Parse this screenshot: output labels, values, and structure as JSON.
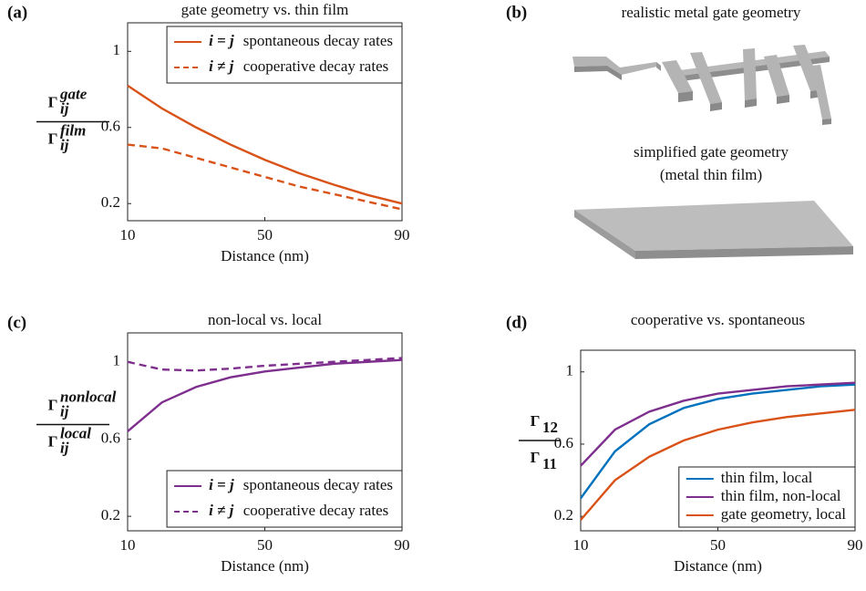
{
  "chart_data": [
    {
      "type": "line",
      "label": "(a)",
      "title": "gate geometry vs. thin film",
      "xlabel": "Distance (nm)",
      "ylabel": {
        "numerator": {
          "base": "Γ",
          "sub": "ij",
          "sup": "gate"
        },
        "denominator": {
          "base": "Γ",
          "sub": "ij",
          "sup": "film"
        }
      },
      "x": [
        10,
        20,
        30,
        40,
        50,
        60,
        70,
        80,
        90
      ],
      "series": [
        {
          "condition": "i = j",
          "name": "spontaneous decay rates",
          "color": "#d95319",
          "dashed": false,
          "values": [
            0.82,
            0.7,
            0.6,
            0.51,
            0.43,
            0.36,
            0.3,
            0.245,
            0.2
          ]
        },
        {
          "condition": "i ≠ j",
          "name": "cooperative decay rates",
          "color": "#d95319",
          "dashed": true,
          "values": [
            0.51,
            0.49,
            0.44,
            0.39,
            0.34,
            0.29,
            0.25,
            0.21,
            0.17
          ]
        }
      ],
      "xlim": [
        10,
        90
      ],
      "xticks": [
        10,
        50,
        90
      ],
      "ylim": [
        0.11,
        1.15
      ],
      "yticks": [
        0.2,
        0.6,
        1
      ],
      "legend": "upper-right"
    },
    {
      "type": "line",
      "label": "(c)",
      "title": "non-local vs. local",
      "xlabel": "Distance (nm)",
      "ylabel": {
        "numerator": {
          "base": "Γ",
          "sub": "ij",
          "sup": "nonlocal"
        },
        "denominator": {
          "base": "Γ",
          "sub": "ij",
          "sup": "local"
        }
      },
      "x": [
        10,
        20,
        30,
        40,
        50,
        60,
        70,
        80,
        90
      ],
      "series": [
        {
          "condition": "i = j",
          "name": "spontaneous decay rates",
          "color": "#7e2f8e",
          "dashed": false,
          "values": [
            0.64,
            0.79,
            0.87,
            0.92,
            0.95,
            0.97,
            0.99,
            1.0,
            1.01
          ]
        },
        {
          "condition": "i ≠ j",
          "name": "cooperative decay rates",
          "color": "#7e2f8e",
          "dashed": true,
          "values": [
            1.0,
            0.96,
            0.955,
            0.965,
            0.98,
            0.99,
            1.0,
            1.01,
            1.02
          ]
        }
      ],
      "xlim": [
        10,
        90
      ],
      "xticks": [
        10,
        50,
        90
      ],
      "ylim": [
        0.125,
        1.15
      ],
      "yticks": [
        0.2,
        0.6,
        1
      ],
      "legend": "lower-right"
    },
    {
      "type": "line",
      "label": "(d)",
      "title": "cooperative vs. spontaneous",
      "xlabel": "Distance (nm)",
      "ylabel": {
        "numerator": {
          "base": "Γ",
          "sub": "12"
        },
        "denominator": {
          "base": "Γ",
          "sub": "11"
        }
      },
      "x": [
        10,
        20,
        30,
        40,
        50,
        60,
        70,
        80,
        90
      ],
      "series": [
        {
          "name": "thin film, local",
          "color": "#0072bd",
          "dashed": false,
          "values": [
            0.3,
            0.56,
            0.71,
            0.8,
            0.85,
            0.88,
            0.9,
            0.92,
            0.93
          ]
        },
        {
          "name": "thin film, non-local",
          "color": "#7e2f8e",
          "dashed": false,
          "values": [
            0.48,
            0.68,
            0.78,
            0.84,
            0.88,
            0.9,
            0.92,
            0.93,
            0.94
          ]
        },
        {
          "name": "gate geometry, local",
          "color": "#d95319",
          "dashed": false,
          "values": [
            0.18,
            0.4,
            0.53,
            0.62,
            0.68,
            0.72,
            0.75,
            0.77,
            0.79
          ]
        }
      ],
      "xlim": [
        10,
        90
      ],
      "xticks": [
        10,
        50,
        90
      ],
      "ylim": [
        0.12,
        1.12
      ],
      "yticks": [
        0.2,
        0.6,
        1
      ],
      "legend": "lower-right"
    }
  ],
  "diagram": {
    "label": "(b)",
    "top_caption": "realistic metal gate geometry",
    "bottom_caption": [
      "simplified gate geometry",
      "(metal thin film)"
    ]
  }
}
